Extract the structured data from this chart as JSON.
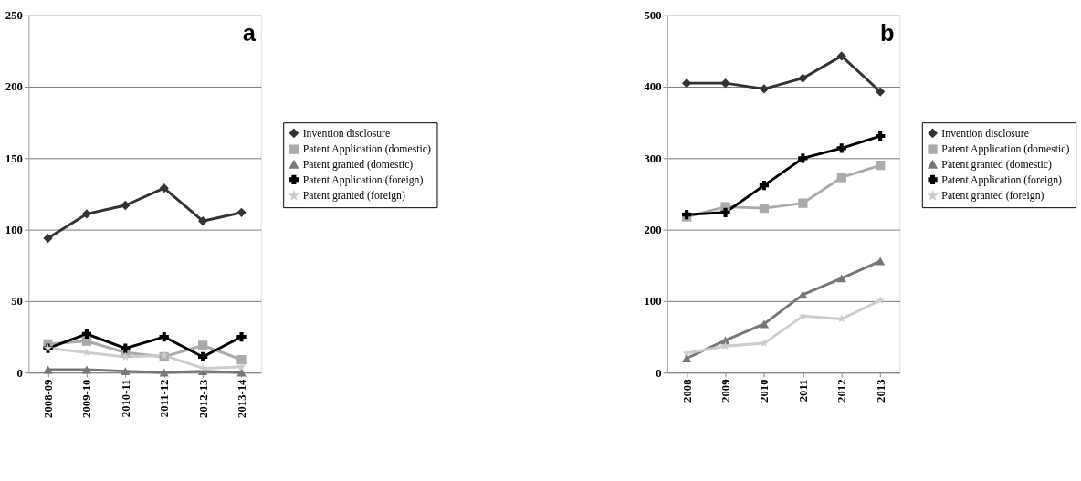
{
  "chart_data": [
    {
      "type": "line",
      "title": "a",
      "categories": [
        "2008-09",
        "2009-10",
        "2010-11",
        "2011-12",
        "2012-13",
        "2013-14"
      ],
      "ylim": [
        0,
        250
      ],
      "yticks": [
        0,
        50,
        100,
        150,
        200,
        250
      ],
      "grid": "y",
      "legend": "right",
      "series": [
        {
          "name": "Invention disclosure",
          "color": "#333333",
          "marker": "diamond",
          "values": [
            94,
            111,
            117,
            129,
            106,
            112
          ]
        },
        {
          "name": "Patent Application (domestic)",
          "color": "#aaaaaa",
          "marker": "square",
          "values": [
            20,
            22,
            14,
            11,
            19,
            9
          ]
        },
        {
          "name": "Patent granted (domestic)",
          "color": "#777777",
          "marker": "triangle",
          "values": [
            2,
            2,
            1,
            0,
            1,
            0
          ]
        },
        {
          "name": "Patent Application (foreign)",
          "color": "#000000",
          "marker": "cross",
          "values": [
            17,
            27,
            17,
            25,
            11,
            25
          ]
        },
        {
          "name": "Patent granted (foreign)",
          "color": "#cccccc",
          "marker": "star",
          "values": [
            17,
            14,
            11,
            12,
            3,
            4
          ]
        }
      ]
    },
    {
      "type": "line",
      "title": "b",
      "categories": [
        "2008",
        "2009",
        "2010",
        "2011",
        "2012",
        "2013"
      ],
      "ylim": [
        0,
        500
      ],
      "yticks": [
        0,
        100,
        200,
        300,
        400,
        500
      ],
      "grid": "y",
      "legend": "right",
      "series": [
        {
          "name": "Invention disclosure",
          "color": "#333333",
          "marker": "diamond",
          "values": [
            405,
            405,
            397,
            412,
            443,
            393
          ]
        },
        {
          "name": "Patent Application (domestic)",
          "color": "#aaaaaa",
          "marker": "square",
          "values": [
            218,
            232,
            230,
            237,
            273,
            290
          ]
        },
        {
          "name": "Patent granted (domestic)",
          "color": "#777777",
          "marker": "triangle",
          "values": [
            20,
            45,
            68,
            109,
            132,
            156
          ]
        },
        {
          "name": "Patent Application (foreign)",
          "color": "#000000",
          "marker": "cross",
          "values": [
            221,
            224,
            262,
            300,
            314,
            331
          ]
        },
        {
          "name": "Patent granted (foreign)",
          "color": "#cccccc",
          "marker": "star",
          "values": [
            27,
            37,
            41,
            79,
            75,
            101
          ]
        }
      ]
    }
  ]
}
